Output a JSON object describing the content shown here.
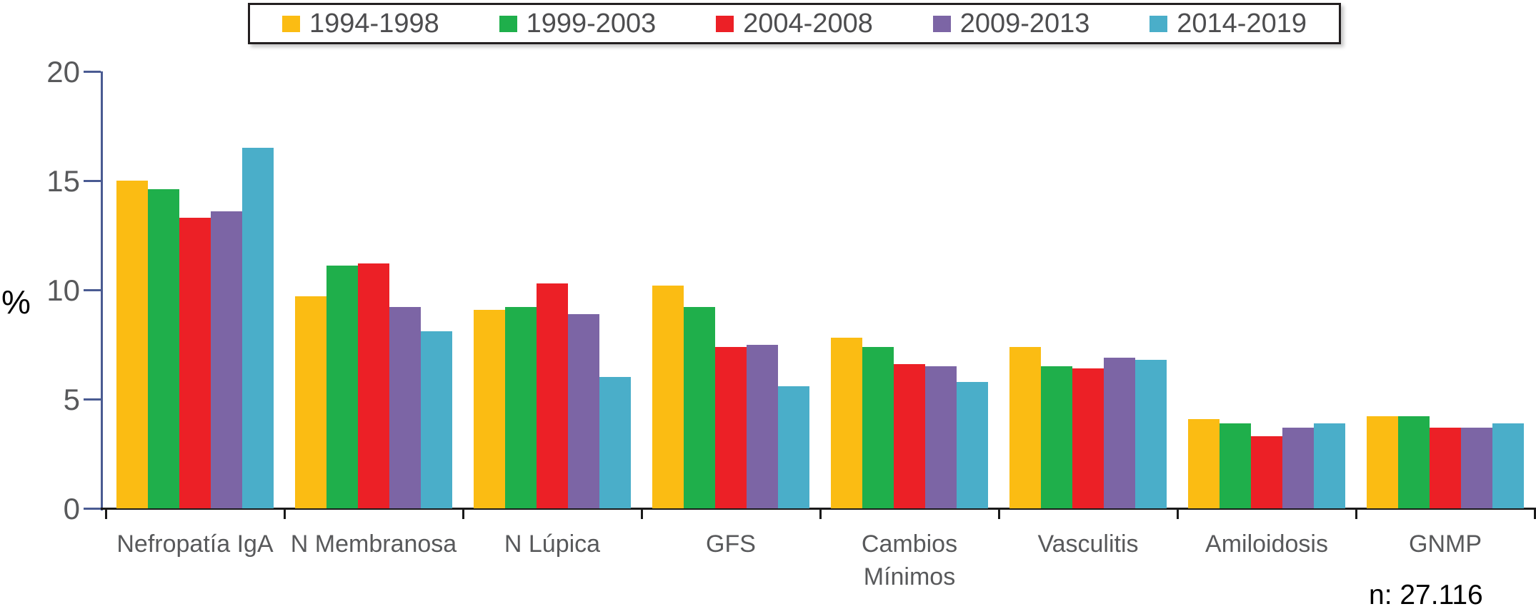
{
  "ui": {
    "background": "#ffffff",
    "colors": {
      "axis_blue": "#4a5b92",
      "baseline_black": "#1a1a1a",
      "tick_label_gray": "#58595b",
      "category_label_gray": "#58595b",
      "legend_text_gray": "#4d4d4f",
      "legend_border": "#231f20",
      "note_black": "#000000"
    }
  },
  "chart_data": {
    "type": "bar",
    "title": "",
    "xlabel": "",
    "ylabel": "%",
    "ylim": [
      0,
      20
    ],
    "yticks": [
      0,
      5,
      10,
      15,
      20
    ],
    "grid": false,
    "legend_position": "top",
    "categories": [
      "Nefropatía IgA",
      "N Membranosa",
      "N Lúpica",
      "GFS",
      "Cambios\nMínimos",
      "Vasculitis",
      "Amiloidosis",
      "GNMP"
    ],
    "series": [
      {
        "name": "1994-1998",
        "color": "#fbbc13",
        "values": [
          15.0,
          9.7,
          9.1,
          10.2,
          7.8,
          7.4,
          4.1,
          4.2
        ]
      },
      {
        "name": "1999-2003",
        "color": "#1faf4b",
        "values": [
          14.6,
          11.1,
          9.2,
          9.2,
          7.4,
          6.5,
          3.9,
          4.2
        ]
      },
      {
        "name": "2004-2008",
        "color": "#ec2026",
        "values": [
          13.3,
          11.2,
          10.3,
          7.4,
          6.6,
          6.4,
          3.3,
          3.7
        ]
      },
      {
        "name": "2009-2013",
        "color": "#7c65a5",
        "values": [
          13.6,
          9.2,
          8.9,
          7.5,
          6.5,
          6.9,
          3.7,
          3.7
        ]
      },
      {
        "name": "2014-2019",
        "color": "#4aaec9",
        "values": [
          16.5,
          8.1,
          6.0,
          5.6,
          5.8,
          6.8,
          3.9,
          3.9
        ]
      }
    ],
    "note": "n: 27.116"
  }
}
